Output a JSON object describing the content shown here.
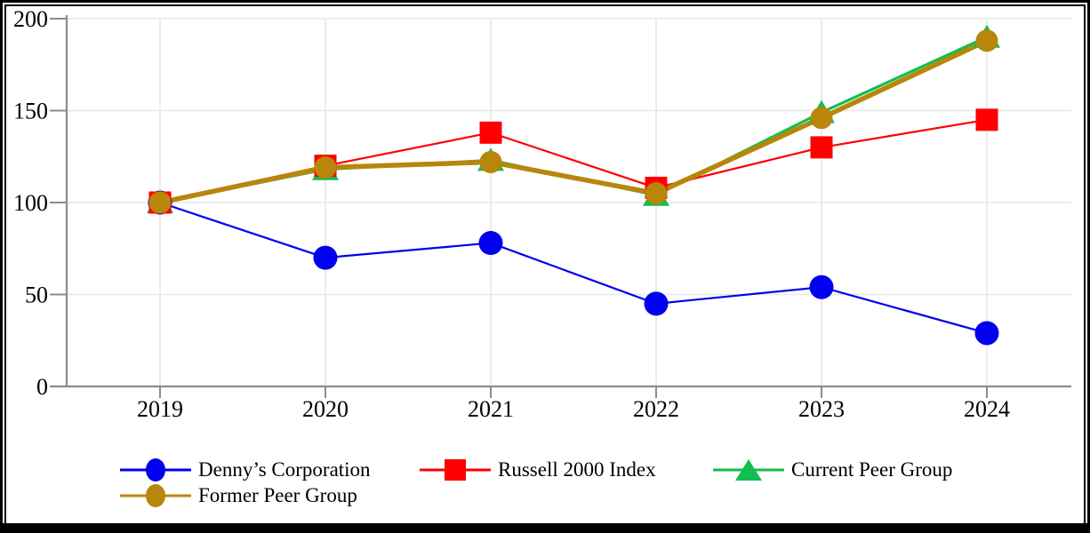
{
  "chart_data": {
    "type": "line",
    "title": "",
    "xlabel": "",
    "ylabel": "",
    "categories": [
      "2019",
      "2020",
      "2021",
      "2022",
      "2023",
      "2024"
    ],
    "series": [
      {
        "name": "Denny’s Corporation",
        "color": "#0000EE",
        "marker": "circle",
        "values": [
          100,
          70,
          78,
          45,
          54,
          29
        ]
      },
      {
        "name": "Russell 2000 Index",
        "color": "#FE0000",
        "marker": "square",
        "values": [
          100,
          120,
          138,
          108,
          130,
          145
        ]
      },
      {
        "name": "Current Peer Group",
        "color": "#12BE4E",
        "marker": "triangle",
        "values": [
          100,
          118,
          123,
          104,
          149,
          190
        ]
      },
      {
        "name": "Former Peer Group",
        "color": "#B8860B",
        "marker": "circle",
        "values": [
          100,
          119,
          122,
          105,
          146,
          188
        ]
      }
    ],
    "yticks": [
      0,
      50,
      100,
      150,
      200
    ],
    "ylim": [
      0,
      200
    ],
    "grid": true,
    "legend_position": "bottom"
  },
  "style_colors": {
    "axis": "#8C8C8C",
    "gridline": "#E8E8E8",
    "text": "#000000",
    "frame": "#000000",
    "background": "#FFFFFF"
  }
}
